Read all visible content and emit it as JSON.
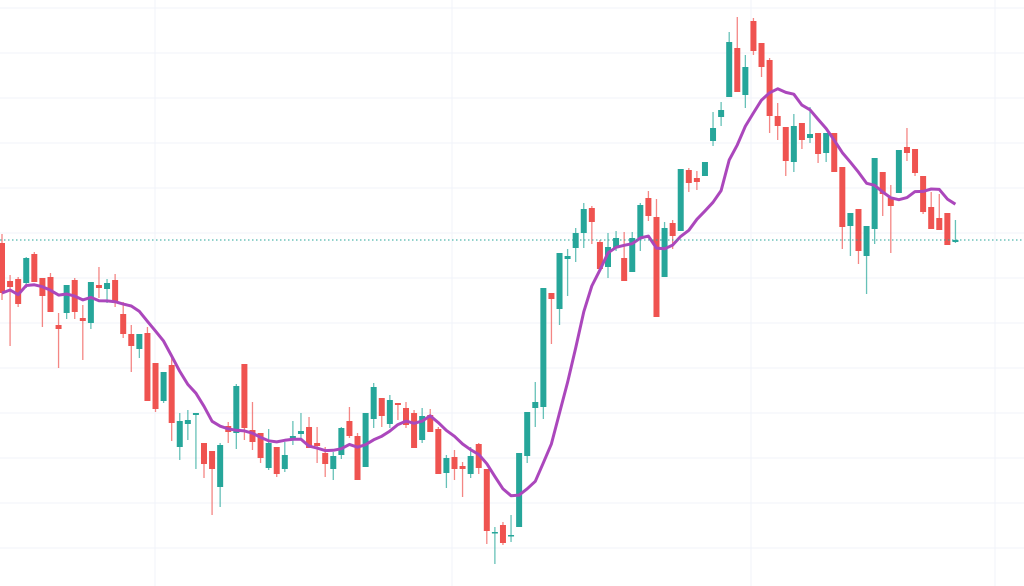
{
  "chart_data": {
    "type": "candlestick",
    "title": "",
    "xlabel": "",
    "ylabel": "",
    "ylim": [
      1.4,
      60.0
    ],
    "grid": true,
    "candles_ohlc": [
      [
        35.7,
        36.6,
        30.0,
        30.7
      ],
      [
        31.9,
        32.5,
        25.4,
        31.3
      ],
      [
        32.1,
        32.3,
        29.3,
        29.6
      ],
      [
        31.7,
        34.3,
        31.2,
        34.2
      ],
      [
        34.6,
        34.8,
        31.8,
        31.8
      ],
      [
        32.2,
        32.2,
        27.3,
        30.4
      ],
      [
        32.3,
        32.7,
        28.8,
        28.8
      ],
      [
        27.5,
        28.7,
        23.2,
        27.1
      ],
      [
        28.7,
        31.5,
        28.1,
        31.5
      ],
      [
        32.0,
        32.2,
        28.1,
        28.8
      ],
      [
        28.2,
        29.5,
        24.0,
        27.9
      ],
      [
        27.7,
        31.8,
        27.1,
        31.8
      ],
      [
        31.5,
        33.3,
        30.2,
        31.2
      ],
      [
        31.1,
        32.1,
        29.7,
        31.7
      ],
      [
        32.0,
        32.6,
        29.3,
        29.7
      ],
      [
        28.6,
        29.8,
        26.2,
        26.6
      ],
      [
        26.6,
        27.5,
        22.8,
        25.4
      ],
      [
        25.1,
        26.6,
        24.2,
        26.6
      ],
      [
        26.7,
        27.3,
        19.9,
        19.9
      ],
      [
        23.7,
        23.7,
        18.8,
        19.1
      ],
      [
        19.9,
        22.8,
        19.7,
        22.8
      ],
      [
        23.5,
        24.3,
        15.9,
        17.7
      ],
      [
        15.3,
        18.7,
        14.0,
        17.9
      ],
      [
        17.6,
        19.0,
        16.0,
        18.0
      ],
      [
        18.5,
        18.7,
        13.1,
        18.7
      ],
      [
        15.7,
        15.7,
        12.2,
        13.6
      ],
      [
        14.9,
        14.9,
        8.5,
        13.1
      ],
      [
        11.3,
        15.7,
        9.3,
        15.5
      ],
      [
        17.4,
        17.8,
        15.7,
        16.8
      ],
      [
        16.7,
        21.6,
        15.1,
        21.4
      ],
      [
        23.6,
        23.6,
        16.0,
        17.2
      ],
      [
        17.0,
        19.8,
        15.0,
        15.8
      ],
      [
        16.7,
        16.7,
        13.7,
        14.2
      ],
      [
        13.2,
        17.1,
        13.0,
        15.7
      ],
      [
        15.3,
        15.3,
        12.3,
        12.6
      ],
      [
        13.1,
        15.8,
        12.8,
        14.5
      ],
      [
        16.0,
        17.9,
        15.5,
        16.4
      ],
      [
        16.6,
        18.7,
        16.2,
        16.9
      ],
      [
        17.3,
        18.3,
        15.2,
        15.2
      ],
      [
        15.7,
        17.3,
        13.7,
        15.4
      ],
      [
        14.7,
        15.3,
        12.3,
        13.6
      ],
      [
        13.1,
        14.8,
        12.0,
        14.4
      ],
      [
        14.5,
        17.3,
        14.1,
        17.2
      ],
      [
        17.9,
        19.3,
        16.2,
        16.4
      ],
      [
        16.4,
        16.7,
        12.0,
        12.0
      ],
      [
        13.3,
        18.7,
        13.3,
        18.7
      ],
      [
        18.1,
        21.7,
        17.2,
        21.3
      ],
      [
        20.2,
        20.2,
        17.3,
        18.4
      ],
      [
        17.6,
        20.5,
        17.2,
        20.0
      ],
      [
        19.7,
        19.7,
        18.0,
        19.5
      ],
      [
        19.2,
        19.8,
        17.2,
        17.5
      ],
      [
        18.7,
        19.0,
        15.2,
        15.2
      ],
      [
        16.0,
        19.2,
        15.7,
        18.4
      ],
      [
        18.5,
        19.1,
        16.8,
        16.8
      ],
      [
        17.1,
        17.3,
        12.6,
        12.6
      ],
      [
        12.7,
        14.5,
        11.2,
        14.2
      ],
      [
        14.3,
        15.0,
        12.0,
        13.1
      ],
      [
        13.4,
        13.8,
        10.3,
        13.1
      ],
      [
        12.6,
        15.3,
        12.2,
        14.4
      ],
      [
        15.6,
        15.7,
        12.6,
        13.2
      ],
      [
        13.1,
        13.1,
        5.6,
        6.9
      ],
      [
        6.7,
        7.3,
        3.6,
        6.8
      ],
      [
        7.5,
        7.8,
        5.5,
        5.7
      ],
      [
        6.4,
        8.5,
        5.8,
        6.5
      ],
      [
        7.3,
        14.7,
        7.3,
        14.7
      ],
      [
        14.4,
        18.8,
        13.7,
        18.8
      ],
      [
        19.2,
        21.8,
        17.3,
        19.8
      ],
      [
        19.3,
        31.2,
        18.1,
        31.2
      ],
      [
        30.7,
        30.7,
        25.6,
        30.1
      ],
      [
        29.1,
        34.7,
        27.5,
        34.7
      ],
      [
        34.1,
        35.1,
        30.4,
        34.4
      ],
      [
        35.2,
        37.2,
        33.8,
        36.7
      ],
      [
        36.7,
        39.7,
        35.2,
        39.1
      ],
      [
        39.2,
        39.4,
        35.6,
        37.8
      ],
      [
        35.8,
        36.0,
        33.1,
        33.1
      ],
      [
        33.3,
        36.7,
        32.2,
        35.3
      ],
      [
        35.2,
        36.9,
        34.9,
        36.2
      ],
      [
        34.2,
        36.8,
        31.9,
        31.9
      ],
      [
        32.8,
        36.8,
        32.8,
        36.2
      ],
      [
        36.2,
        39.7,
        34.9,
        39.5
      ],
      [
        40.2,
        40.9,
        37.9,
        38.4
      ],
      [
        38.3,
        40.1,
        28.3,
        28.3
      ],
      [
        32.3,
        37.8,
        32.3,
        37.2
      ],
      [
        37.7,
        38.0,
        35.1,
        36.4
      ],
      [
        36.9,
        43.1,
        36.9,
        43.1
      ],
      [
        43.0,
        43.2,
        40.8,
        41.7
      ],
      [
        42.2,
        42.9,
        41.0,
        41.8
      ],
      [
        42.4,
        43.8,
        42.4,
        43.8
      ],
      [
        45.9,
        48.8,
        45.4,
        47.2
      ],
      [
        48.3,
        49.8,
        47.4,
        49.0
      ],
      [
        50.3,
        56.8,
        50.3,
        55.8
      ],
      [
        55.2,
        58.3,
        50.8,
        50.8
      ],
      [
        50.5,
        54.5,
        49.2,
        53.3
      ],
      [
        57.9,
        58.2,
        54.5,
        54.9
      ],
      [
        55.7,
        55.7,
        52.3,
        53.3
      ],
      [
        54.0,
        54.2,
        46.7,
        48.4
      ],
      [
        48.4,
        49.7,
        46.0,
        47.4
      ],
      [
        47.3,
        47.3,
        42.4,
        43.9
      ],
      [
        43.8,
        48.6,
        42.8,
        47.4
      ],
      [
        47.7,
        47.7,
        45.1,
        46.0
      ],
      [
        46.2,
        49.3,
        45.7,
        46.6
      ],
      [
        46.7,
        46.7,
        43.7,
        44.6
      ],
      [
        44.7,
        46.7,
        43.8,
        46.7
      ],
      [
        46.7,
        46.7,
        42.8,
        42.8
      ],
      [
        43.3,
        43.3,
        35.1,
        37.3
      ],
      [
        37.4,
        38.7,
        34.4,
        38.7
      ],
      [
        39.1,
        39.1,
        33.6,
        34.9
      ],
      [
        34.4,
        37.4,
        30.6,
        37.4
      ],
      [
        37.1,
        44.2,
        35.6,
        44.2
      ],
      [
        42.8,
        42.8,
        38.4,
        40.6
      ],
      [
        40.3,
        41.5,
        34.7,
        39.4
      ],
      [
        40.7,
        45.0,
        40.7,
        45.0
      ],
      [
        45.3,
        47.2,
        43.9,
        44.7
      ],
      [
        45.1,
        45.1,
        42.4,
        42.7
      ],
      [
        42.4,
        42.4,
        38.6,
        38.8
      ],
      [
        39.3,
        40.8,
        37.1,
        37.1
      ],
      [
        38.2,
        40.6,
        37.0,
        37.0
      ],
      [
        38.7,
        38.7,
        35.5,
        35.5
      ],
      [
        35.8,
        38.0,
        35.7,
        36.0
      ]
    ],
    "moving_average": {
      "type": "SMA",
      "period": 9,
      "color": "#ab47bc"
    },
    "last_price_line": {
      "value": 36.0,
      "style": "dotted",
      "color": "#26a69a"
    },
    "colors": {
      "up": "#26a69a",
      "down": "#ef5350",
      "grid": "#f0f3fa",
      "background": "#ffffff"
    }
  }
}
